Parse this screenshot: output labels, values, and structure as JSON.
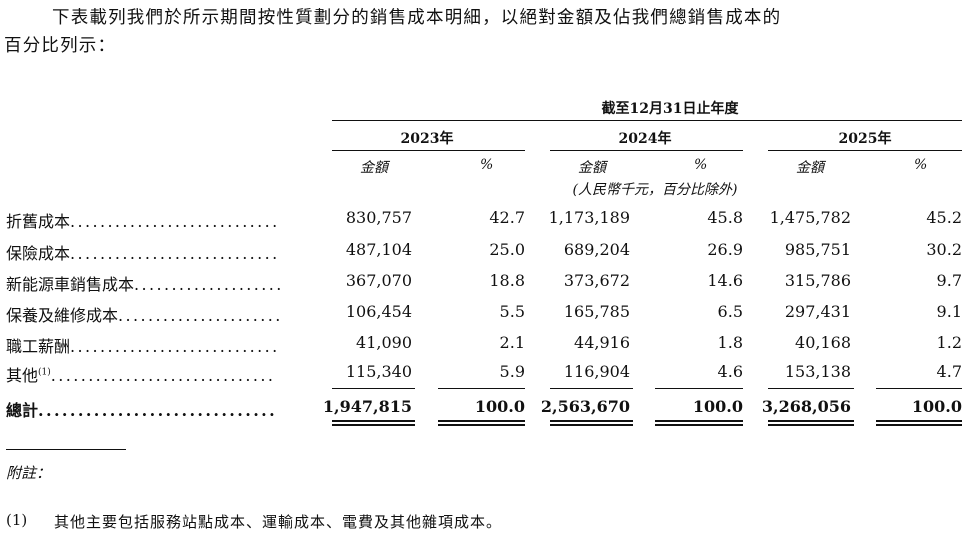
{
  "intro": {
    "line1": "下表載列我們於所示期間按性質劃分的銷售成本明細，以絕對金額及佔我們總銷售成本的",
    "line2": "百分比列示："
  },
  "table": {
    "period_header": "截至12月31日止年度",
    "years": [
      "2023年",
      "2024年",
      "2025年"
    ],
    "amount_label": "金額",
    "pct_label": "%",
    "unit_note": "(人民幣千元，百分比除外)",
    "rows": [
      {
        "label": "折舊成本",
        "dots": "............................",
        "v": [
          "830,757",
          "42.7",
          "1,173,189",
          "45.8",
          "1,475,782",
          "45.2"
        ]
      },
      {
        "label": "保險成本",
        "dots": "............................",
        "v": [
          "487,104",
          "25.0",
          "689,204",
          "26.9",
          "985,751",
          "30.2"
        ]
      },
      {
        "label": "新能源車銷售成本",
        "dots": "....................",
        "v": [
          "367,070",
          "18.8",
          "373,672",
          "14.6",
          "315,786",
          "9.7"
        ]
      },
      {
        "label": "保養及維修成本",
        "dots": "......................",
        "v": [
          "106,454",
          "5.5",
          "165,785",
          "6.5",
          "297,431",
          "9.1"
        ]
      },
      {
        "label": "職工薪酬",
        "dots": "............................",
        "v": [
          "41,090",
          "2.1",
          "44,916",
          "1.8",
          "40,168",
          "1.2"
        ]
      },
      {
        "label": "其他",
        "sup": "(1)",
        "dots": "..............................",
        "v": [
          "115,340",
          "5.9",
          "116,904",
          "4.6",
          "153,138",
          "4.7"
        ]
      }
    ],
    "total": {
      "label": "總計",
      "dots": "..............................",
      "v": [
        "1,947,815",
        "100.0",
        "2,563,670",
        "100.0",
        "3,268,056",
        "100.0"
      ]
    }
  },
  "notes": {
    "heading": "附註：",
    "items": [
      {
        "num": "(1)",
        "text": "其他主要包括服務站點成本、運輸成本、電費及其他雜項成本。"
      }
    ]
  }
}
